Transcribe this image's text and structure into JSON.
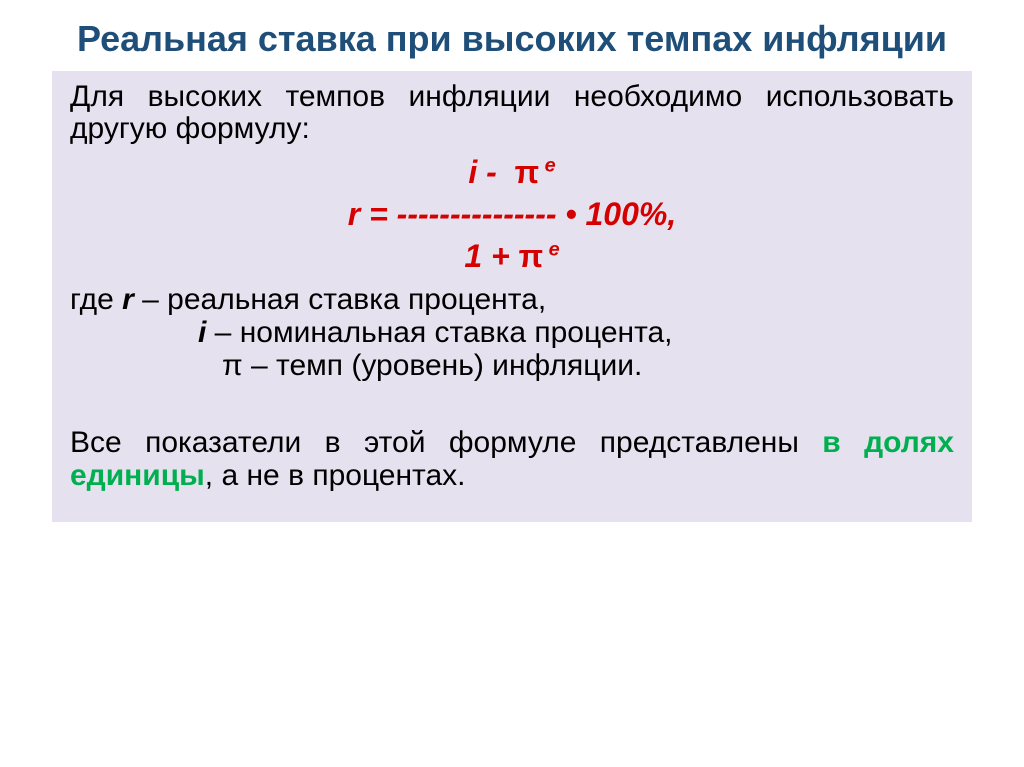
{
  "colors": {
    "title": "#1f4e79",
    "body": "#000000",
    "formula": "#d50000",
    "accent": "#00b050",
    "box_bg": "#e6e1ef"
  },
  "fonts": {
    "title_size": 36,
    "body_size": 30,
    "formula_size": 32
  },
  "title": "Реальная ставка при высоких темпах инфляции",
  "intro": "Для высоких темпов инфляции необходимо использовать другую формулу:",
  "formula": {
    "numerator_pre": "i -  ",
    "numerator_pi": "π",
    "numerator_sup": " е",
    "middle_pre": "r = --------------- • 100%,",
    "denominator_pre": "1 + ",
    "denominator_pi": "π",
    "denominator_sup": " е"
  },
  "defs": {
    "r_pre": "где ",
    "r_sym": "r",
    "r_post": " – реальная ставка процента,",
    "i_sym": "i",
    "i_post": " – номинальная ставка процента,",
    "pi_sym": "π",
    "pi_post": "   – темп (уровень) инфляции."
  },
  "closing_pre": "Все показатели в этой формуле представлены ",
  "closing_accent": "в долях единицы",
  "closing_post": ", а не в процентах."
}
